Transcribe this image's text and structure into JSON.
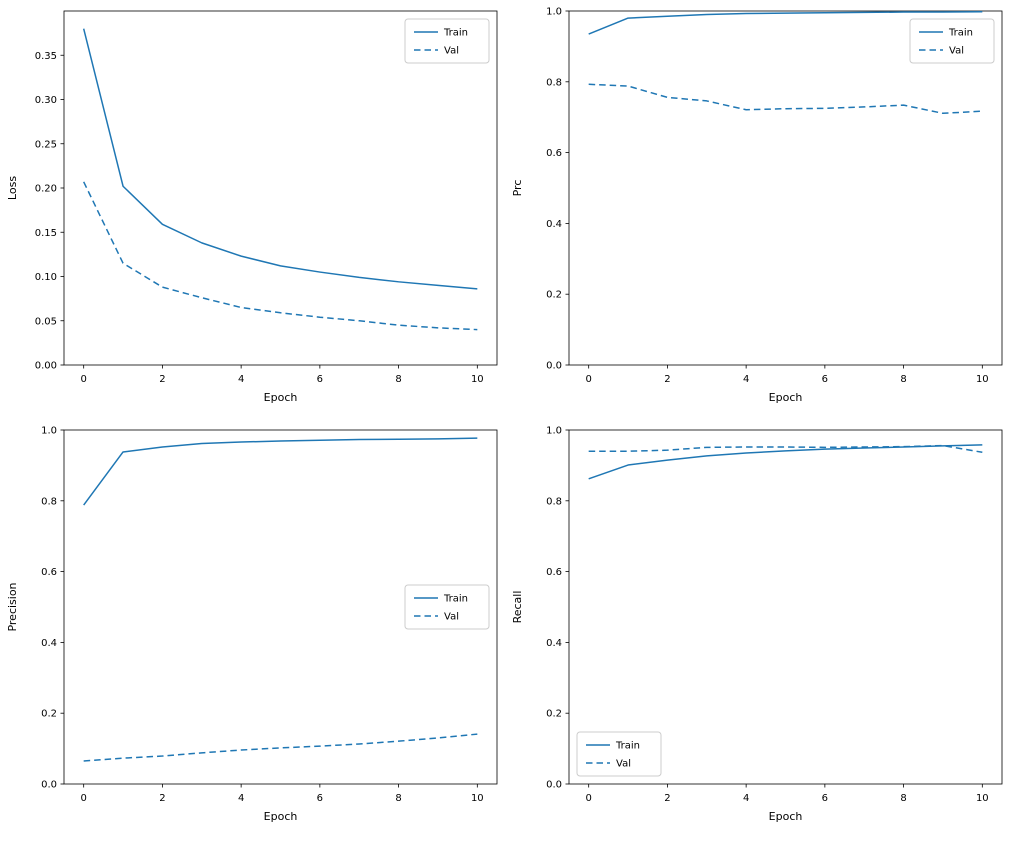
{
  "figure": {
    "background": "#ffffff",
    "accent_color": "#1f77b4",
    "spine_color": "#000000",
    "legend_border_color": "#cccccc"
  },
  "chart_data": [
    {
      "type": "line",
      "title": "",
      "xlabel": "Epoch",
      "ylabel": "Loss",
      "x": [
        0,
        1,
        2,
        3,
        4,
        5,
        6,
        7,
        8,
        9,
        10
      ],
      "xlim": [
        -0.5,
        10.5
      ],
      "ylim": [
        0,
        0.4
      ],
      "xticks": [
        0,
        2,
        4,
        6,
        8,
        10
      ],
      "xtick_labels": [
        "0",
        "2",
        "4",
        "6",
        "8",
        "10"
      ],
      "yticks": [
        0,
        0.05,
        0.1,
        0.15,
        0.2,
        0.25,
        0.3,
        0.35
      ],
      "ytick_labels": [
        "0.00",
        "0.05",
        "0.10",
        "0.15",
        "0.20",
        "0.25",
        "0.30",
        "0.35"
      ],
      "grid": false,
      "legend": {
        "position": "upper-right",
        "entries": [
          "Train",
          "Val"
        ]
      },
      "series": [
        {
          "name": "Train",
          "line_style": "solid",
          "color": "#1f77b4",
          "values": [
            0.38,
            0.202,
            0.159,
            0.138,
            0.123,
            0.112,
            0.105,
            0.099,
            0.094,
            0.09,
            0.086
          ]
        },
        {
          "name": "Val",
          "line_style": "dashed",
          "color": "#1f77b4",
          "values": [
            0.207,
            0.115,
            0.088,
            0.076,
            0.065,
            0.059,
            0.054,
            0.05,
            0.045,
            0.042,
            0.04
          ]
        }
      ]
    },
    {
      "type": "line",
      "title": "",
      "xlabel": "Epoch",
      "ylabel": "Prc",
      "x": [
        0,
        1,
        2,
        3,
        4,
        5,
        6,
        7,
        8,
        9,
        10
      ],
      "xlim": [
        -0.5,
        10.5
      ],
      "ylim": [
        0,
        1.0
      ],
      "xticks": [
        0,
        2,
        4,
        6,
        8,
        10
      ],
      "xtick_labels": [
        "0",
        "2",
        "4",
        "6",
        "8",
        "10"
      ],
      "yticks": [
        0,
        0.2,
        0.4,
        0.6,
        0.8,
        1.0
      ],
      "ytick_labels": [
        "0.0",
        "0.2",
        "0.4",
        "0.6",
        "0.8",
        "1.0"
      ],
      "grid": false,
      "legend": {
        "position": "upper-right",
        "entries": [
          "Train",
          "Val"
        ]
      },
      "series": [
        {
          "name": "Train",
          "line_style": "solid",
          "color": "#1f77b4",
          "values": [
            0.935,
            0.98,
            0.985,
            0.99,
            0.993,
            0.994,
            0.995,
            0.996,
            0.997,
            0.997,
            0.998
          ]
        },
        {
          "name": "Val",
          "line_style": "dashed",
          "color": "#1f77b4",
          "values": [
            0.793,
            0.788,
            0.756,
            0.746,
            0.721,
            0.724,
            0.725,
            0.729,
            0.734,
            0.711,
            0.717
          ]
        }
      ]
    },
    {
      "type": "line",
      "title": "",
      "xlabel": "Epoch",
      "ylabel": "Precision",
      "x": [
        0,
        1,
        2,
        3,
        4,
        5,
        6,
        7,
        8,
        9,
        10
      ],
      "xlim": [
        -0.5,
        10.5
      ],
      "ylim": [
        0,
        1.0
      ],
      "xticks": [
        0,
        2,
        4,
        6,
        8,
        10
      ],
      "xtick_labels": [
        "0",
        "2",
        "4",
        "6",
        "8",
        "10"
      ],
      "yticks": [
        0,
        0.2,
        0.4,
        0.6,
        0.8,
        1.0
      ],
      "ytick_labels": [
        "0.0",
        "0.2",
        "0.4",
        "0.6",
        "0.8",
        "1.0"
      ],
      "grid": false,
      "legend": {
        "position": "center-right",
        "entries": [
          "Train",
          "Val"
        ]
      },
      "series": [
        {
          "name": "Train",
          "line_style": "solid",
          "color": "#1f77b4",
          "values": [
            0.788,
            0.938,
            0.952,
            0.962,
            0.966,
            0.969,
            0.971,
            0.973,
            0.974,
            0.975,
            0.977
          ]
        },
        {
          "name": "Val",
          "line_style": "dashed",
          "color": "#1f77b4",
          "values": [
            0.065,
            0.073,
            0.079,
            0.088,
            0.096,
            0.102,
            0.107,
            0.113,
            0.121,
            0.13,
            0.141
          ]
        }
      ]
    },
    {
      "type": "line",
      "title": "",
      "xlabel": "Epoch",
      "ylabel": "Recall",
      "x": [
        0,
        1,
        2,
        3,
        4,
        5,
        6,
        7,
        8,
        9,
        10
      ],
      "xlim": [
        -0.5,
        10.5
      ],
      "ylim": [
        0,
        1.0
      ],
      "xticks": [
        0,
        2,
        4,
        6,
        8,
        10
      ],
      "xtick_labels": [
        "0",
        "2",
        "4",
        "6",
        "8",
        "10"
      ],
      "yticks": [
        0,
        0.2,
        0.4,
        0.6,
        0.8,
        1.0
      ],
      "ytick_labels": [
        "0.0",
        "0.2",
        "0.4",
        "0.6",
        "0.8",
        "1.0"
      ],
      "grid": false,
      "legend": {
        "position": "lower-left",
        "entries": [
          "Train",
          "Val"
        ]
      },
      "series": [
        {
          "name": "Train",
          "line_style": "solid",
          "color": "#1f77b4",
          "values": [
            0.862,
            0.901,
            0.915,
            0.927,
            0.935,
            0.941,
            0.946,
            0.949,
            0.952,
            0.955,
            0.958
          ]
        },
        {
          "name": "Val",
          "line_style": "dashed",
          "color": "#1f77b4",
          "values": [
            0.94,
            0.94,
            0.943,
            0.951,
            0.952,
            0.952,
            0.951,
            0.952,
            0.953,
            0.956,
            0.937
          ]
        }
      ]
    }
  ]
}
